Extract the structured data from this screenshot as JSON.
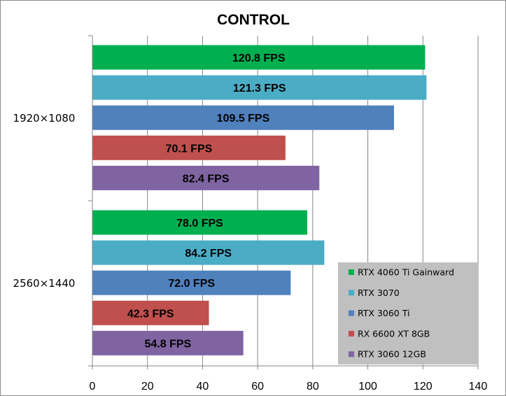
{
  "chart_data": {
    "type": "bar",
    "orientation": "horizontal",
    "title": "CONTROL",
    "categories": [
      "1920×1080",
      "2560×1440"
    ],
    "series": [
      {
        "name": "RTX 4060 Ti Gainward",
        "color": "#00b050",
        "values": [
          120.8,
          78.0
        ],
        "labels": [
          "120.8 FPS",
          "78.0 FPS"
        ]
      },
      {
        "name": "RTX 3070",
        "color": "#4bacc6",
        "values": [
          121.3,
          84.2
        ],
        "labels": [
          "121.3 FPS",
          "84.2 FPS"
        ]
      },
      {
        "name": "RTX 3060 Ti",
        "color": "#4f81bd",
        "values": [
          109.5,
          72.0
        ],
        "labels": [
          "109.5 FPS",
          "72.0 FPS"
        ]
      },
      {
        "name": "RX 6600 XT 8GB",
        "color": "#c0504d",
        "values": [
          70.1,
          42.3
        ],
        "labels": [
          "70.1 FPS",
          "42.3 FPS"
        ]
      },
      {
        "name": "RTX 3060 12GB",
        "color": "#8064a2",
        "values": [
          82.4,
          54.8
        ],
        "labels": [
          "82.4 FPS",
          "54.8 FPS"
        ]
      }
    ],
    "xlim": [
      0,
      140
    ],
    "xticks": [
      0,
      20,
      40,
      60,
      80,
      100,
      120,
      140
    ],
    "grid": true,
    "legend": "bottom-right",
    "colors": {
      "grid": "#868686",
      "legend_bg": "#c0c0c0"
    }
  }
}
